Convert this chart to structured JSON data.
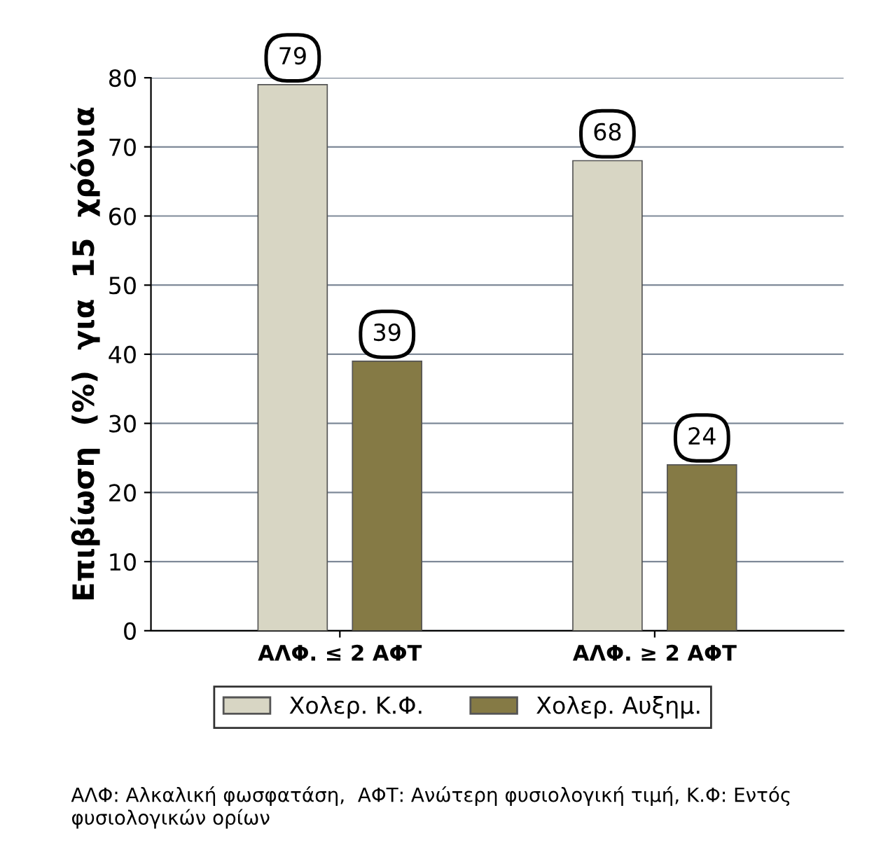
{
  "chart_data": {
    "type": "bar",
    "ylabel": "Επιβίωση  (%)  για  15  χρόνια",
    "categories": [
      "ΑΛΦ. ≤ 2 ΑΦΤ",
      "ΑΛΦ. ≥ 2 ΑΦΤ"
    ],
    "series": [
      {
        "name": "Χολερ. Κ.Φ.",
        "color": "#d8d6c4",
        "values": [
          79,
          68
        ]
      },
      {
        "name": "Χολερ. Αυξημ.",
        "color": "#857a45",
        "values": [
          39,
          24
        ]
      }
    ],
    "ylim": [
      0,
      80
    ],
    "yticks": [
      0,
      10,
      20,
      30,
      40,
      50,
      60,
      70,
      80
    ],
    "grid": "y",
    "legend": "bottom",
    "data_labels": true,
    "annotations": [
      "ΑΛΦ: Αλκαλική φωσφατάση,  ΑΦΤ: Ανώτερη φυσιολογική τιμή, Κ.Φ: Εντός φυσιολογικών ορίων"
    ]
  }
}
